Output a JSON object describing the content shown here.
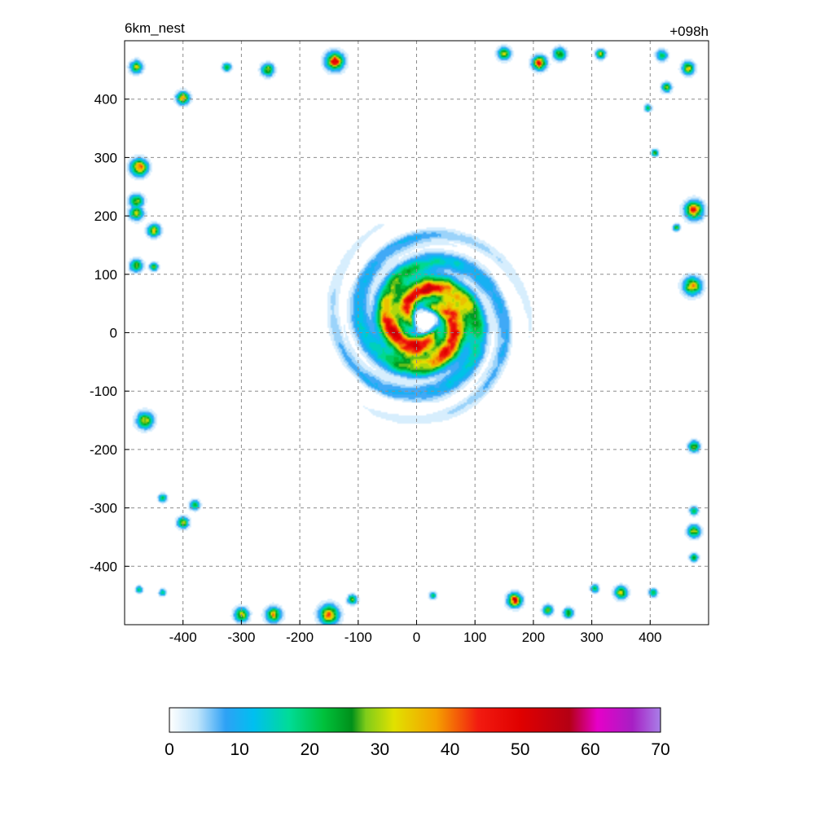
{
  "chart_data": {
    "type": "heatmap",
    "title_left": "6km_nest",
    "title_right": "+098h",
    "xlabel": "",
    "ylabel": "",
    "xlim": [
      -500,
      500
    ],
    "ylim": [
      -500,
      500
    ],
    "x_ticks": [
      -400,
      -300,
      -200,
      -100,
      0,
      100,
      200,
      300,
      400
    ],
    "y_ticks": [
      -400,
      -300,
      -200,
      -100,
      0,
      100,
      200,
      300,
      400
    ],
    "x_tick_labels": [
      "-400",
      "-300",
      "-200",
      "-100",
      "0",
      "100",
      "200",
      "300",
      "400"
    ],
    "y_tick_labels": [
      "-400",
      "-300",
      "-200",
      "-100",
      "0",
      "100",
      "200",
      "300",
      "400"
    ],
    "grid": true,
    "colorbar": {
      "orientation": "horizontal",
      "placement": "bottom",
      "range": [
        0,
        70
      ],
      "tick_values": [
        0,
        10,
        20,
        30,
        40,
        50,
        60,
        70
      ],
      "tick_labels": [
        "0",
        "10",
        "20",
        "30",
        "40",
        "50",
        "60",
        "70"
      ],
      "stops": [
        {
          "v": 0,
          "color": "#ffffff"
        },
        {
          "v": 4,
          "color": "#bfe4fb"
        },
        {
          "v": 8,
          "color": "#2ea1f5"
        },
        {
          "v": 12,
          "color": "#00bff0"
        },
        {
          "v": 17,
          "color": "#00dc98"
        },
        {
          "v": 22,
          "color": "#00c13b"
        },
        {
          "v": 26,
          "color": "#00901a"
        },
        {
          "v": 28,
          "color": "#7fcc1a"
        },
        {
          "v": 32,
          "color": "#e1e100"
        },
        {
          "v": 38,
          "color": "#f5a000"
        },
        {
          "v": 44,
          "color": "#f21b10"
        },
        {
          "v": 50,
          "color": "#e00000"
        },
        {
          "v": 57,
          "color": "#b40014"
        },
        {
          "v": 61,
          "color": "#e600c8"
        },
        {
          "v": 66,
          "color": "#a71fc4"
        },
        {
          "v": 70,
          "color": "#a880e8"
        }
      ]
    },
    "features": [
      {
        "kind": "ring",
        "x": 15,
        "y": 20,
        "r_in": 25,
        "r_out": 140,
        "peak": 50,
        "arms": 3,
        "twist": 0.022
      },
      {
        "kind": "cell",
        "x": -475,
        "y": 283,
        "r": 12,
        "peak": 45
      },
      {
        "kind": "cell",
        "x": -480,
        "y": 225,
        "r": 10,
        "peak": 30
      },
      {
        "kind": "cell",
        "x": -480,
        "y": 205,
        "r": 10,
        "peak": 32
      },
      {
        "kind": "cell",
        "x": -450,
        "y": 175,
        "r": 9,
        "peak": 36
      },
      {
        "kind": "cell",
        "x": -480,
        "y": 115,
        "r": 9,
        "peak": 30
      },
      {
        "kind": "cell",
        "x": -450,
        "y": 113,
        "r": 6,
        "peak": 28
      },
      {
        "kind": "cell",
        "x": -480,
        "y": 455,
        "r": 9,
        "peak": 30
      },
      {
        "kind": "cell",
        "x": -400,
        "y": 402,
        "r": 9,
        "peak": 40
      },
      {
        "kind": "cell",
        "x": -325,
        "y": 455,
        "r": 6,
        "peak": 26
      },
      {
        "kind": "cell",
        "x": -255,
        "y": 450,
        "r": 9,
        "peak": 32
      },
      {
        "kind": "cell",
        "x": -140,
        "y": 465,
        "r": 13,
        "peak": 48
      },
      {
        "kind": "cell",
        "x": 150,
        "y": 478,
        "r": 9,
        "peak": 32
      },
      {
        "kind": "cell",
        "x": 210,
        "y": 462,
        "r": 10,
        "peak": 48
      },
      {
        "kind": "cell",
        "x": 245,
        "y": 477,
        "r": 9,
        "peak": 30
      },
      {
        "kind": "cell",
        "x": 315,
        "y": 477,
        "r": 7,
        "peak": 30
      },
      {
        "kind": "cell",
        "x": 420,
        "y": 475,
        "r": 8,
        "peak": 22
      },
      {
        "kind": "cell",
        "x": 465,
        "y": 453,
        "r": 9,
        "peak": 34
      },
      {
        "kind": "cell",
        "x": 428,
        "y": 420,
        "r": 7,
        "peak": 28
      },
      {
        "kind": "cell",
        "x": 396,
        "y": 385,
        "r": 5,
        "peak": 26
      },
      {
        "kind": "cell",
        "x": 408,
        "y": 308,
        "r": 5,
        "peak": 26
      },
      {
        "kind": "cell",
        "x": 475,
        "y": 210,
        "r": 13,
        "peak": 46
      },
      {
        "kind": "cell",
        "x": 445,
        "y": 180,
        "r": 5,
        "peak": 26
      },
      {
        "kind": "cell",
        "x": 472,
        "y": 80,
        "r": 13,
        "peak": 38
      },
      {
        "kind": "cell",
        "x": -465,
        "y": -150,
        "r": 12,
        "peak": 32
      },
      {
        "kind": "cell",
        "x": -435,
        "y": -283,
        "r": 6,
        "peak": 24
      },
      {
        "kind": "cell",
        "x": -400,
        "y": -325,
        "r": 8,
        "peak": 32
      },
      {
        "kind": "cell",
        "x": -380,
        "y": -295,
        "r": 7,
        "peak": 26
      },
      {
        "kind": "cell",
        "x": -435,
        "y": -445,
        "r": 5,
        "peak": 22
      },
      {
        "kind": "cell",
        "x": -475,
        "y": -440,
        "r": 5,
        "peak": 22
      },
      {
        "kind": "cell",
        "x": -300,
        "y": -483,
        "r": 10,
        "peak": 34
      },
      {
        "kind": "cell",
        "x": -245,
        "y": -483,
        "r": 11,
        "peak": 36
      },
      {
        "kind": "cell",
        "x": -150,
        "y": -483,
        "r": 14,
        "peak": 42
      },
      {
        "kind": "cell",
        "x": -110,
        "y": -457,
        "r": 7,
        "peak": 26
      },
      {
        "kind": "cell",
        "x": 28,
        "y": -450,
        "r": 5,
        "peak": 22
      },
      {
        "kind": "cell",
        "x": 168,
        "y": -458,
        "r": 10,
        "peak": 50
      },
      {
        "kind": "cell",
        "x": 225,
        "y": -475,
        "r": 7,
        "peak": 30
      },
      {
        "kind": "cell",
        "x": 260,
        "y": -480,
        "r": 7,
        "peak": 30
      },
      {
        "kind": "cell",
        "x": 305,
        "y": -438,
        "r": 6,
        "peak": 24
      },
      {
        "kind": "cell",
        "x": 350,
        "y": -445,
        "r": 9,
        "peak": 34
      },
      {
        "kind": "cell",
        "x": 405,
        "y": -445,
        "r": 6,
        "peak": 24
      },
      {
        "kind": "cell",
        "x": 475,
        "y": -195,
        "r": 8,
        "peak": 30
      },
      {
        "kind": "cell",
        "x": 475,
        "y": -305,
        "r": 6,
        "peak": 26
      },
      {
        "kind": "cell",
        "x": 475,
        "y": -340,
        "r": 9,
        "peak": 32
      },
      {
        "kind": "cell",
        "x": 475,
        "y": -385,
        "r": 6,
        "peak": 26
      }
    ]
  }
}
